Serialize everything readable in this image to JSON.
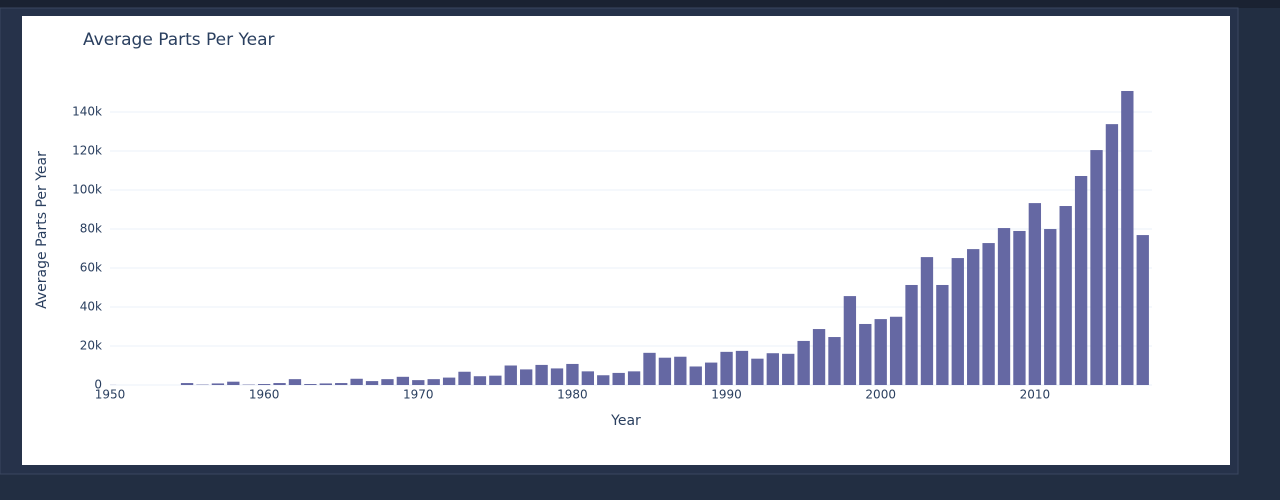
{
  "chart_data": {
    "type": "bar",
    "title": "Average Parts Per Year",
    "xlabel": "Year",
    "ylabel": "Average Parts Per Year",
    "x": [
      1950,
      1951,
      1952,
      1953,
      1954,
      1955,
      1956,
      1957,
      1958,
      1959,
      1960,
      1961,
      1962,
      1963,
      1964,
      1965,
      1966,
      1967,
      1968,
      1969,
      1970,
      1971,
      1972,
      1973,
      1974,
      1975,
      1976,
      1977,
      1978,
      1979,
      1980,
      1981,
      1982,
      1983,
      1984,
      1985,
      1986,
      1987,
      1988,
      1989,
      1990,
      1991,
      1992,
      1993,
      1994,
      1995,
      1996,
      1997,
      1998,
      1999,
      2000,
      2001,
      2002,
      2003,
      2004,
      2005,
      2006,
      2007,
      2008,
      2009,
      2010,
      2011,
      2012,
      2013,
      2014,
      2015,
      2016,
      2017
    ],
    "values": [
      50,
      0,
      0,
      0,
      0,
      1000,
      200,
      800,
      1700,
      200,
      500,
      1000,
      3000,
      500,
      800,
      1000,
      3200,
      2000,
      3000,
      4200,
      2500,
      3000,
      3800,
      6800,
      4500,
      4800,
      10000,
      8000,
      10300,
      8500,
      10800,
      7000,
      5000,
      6200,
      7000,
      16500,
      14000,
      14500,
      9500,
      11500,
      17000,
      17500,
      13500,
      16300,
      16000,
      22600,
      28700,
      24600,
      45600,
      31300,
      33800,
      35000,
      51300,
      65600,
      51300,
      65100,
      69700,
      72800,
      80500,
      79000,
      93300,
      80000,
      91800,
      107200,
      120500,
      133800,
      150800,
      76900
    ],
    "color": "#6568a3",
    "xlim": [
      1950,
      2017.6
    ],
    "xticks": [
      1950,
      1960,
      1970,
      1980,
      1990,
      2000,
      2010
    ],
    "ylim": [
      0,
      159000
    ],
    "yticks": [
      0,
      {
        "value": 20000,
        "label": "20k"
      },
      {
        "value": 40000,
        "label": "40k"
      },
      {
        "value": 60000,
        "label": "60k"
      },
      {
        "value": 80000,
        "label": "80k"
      },
      {
        "value": 100000,
        "label": "100k"
      },
      {
        "value": 120000,
        "label": "120k"
      },
      {
        "value": 140000,
        "label": "140k"
      }
    ],
    "grid": true
  }
}
